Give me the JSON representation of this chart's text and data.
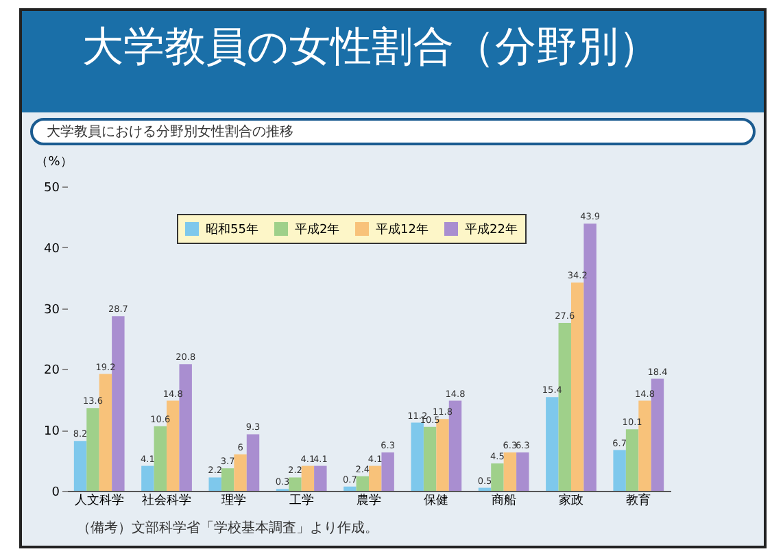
{
  "chart_data": {
    "type": "bar",
    "title": "大学教員の女性割合（分野別）",
    "subtitle": "大学教員における分野別女性割合の推移",
    "ylabel": "（%）",
    "categories": [
      "人文科学",
      "社会科学",
      "理学",
      "工学",
      "農学",
      "保健",
      "商船",
      "家政",
      "教育"
    ],
    "series": [
      {
        "name": "昭和55年",
        "color": "#7ec8ec",
        "values": [
          8.2,
          4.1,
          2.2,
          0.3,
          0.7,
          11.2,
          0.5,
          15.4,
          6.7
        ]
      },
      {
        "name": "平成2年",
        "color": "#9fd08a",
        "values": [
          13.6,
          10.6,
          3.7,
          2.2,
          2.4,
          10.5,
          4.5,
          27.6,
          10.1
        ]
      },
      {
        "name": "平成12年",
        "color": "#f8c27a",
        "values": [
          19.2,
          14.8,
          6.0,
          4.1,
          4.1,
          11.8,
          6.3,
          34.2,
          14.8
        ]
      },
      {
        "name": "平成22年",
        "color": "#a98ed0",
        "values": [
          28.7,
          20.8,
          9.3,
          4.1,
          6.3,
          14.8,
          6.3,
          43.9,
          18.4
        ]
      }
    ],
    "ylim": [
      0,
      50
    ],
    "yticks": [
      0,
      10,
      20,
      30,
      40,
      50
    ],
    "grid": false,
    "legend": "top",
    "data_labels": true,
    "annotations": [
      "（備考）文部科学省「学校基本調査」より作成。"
    ]
  }
}
